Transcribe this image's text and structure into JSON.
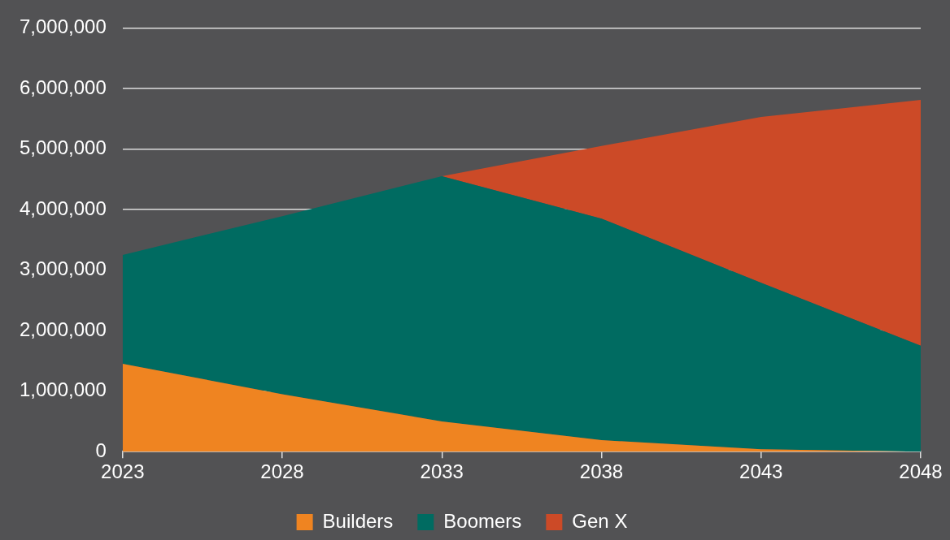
{
  "chart_data": {
    "type": "area",
    "stacked": true,
    "categories": [
      "2023",
      "2028",
      "2033",
      "2038",
      "2043",
      "2048"
    ],
    "series": [
      {
        "name": "Builders",
        "color": "#ef8421",
        "values": [
          1450000,
          950000,
          500000,
          190000,
          40000,
          0
        ]
      },
      {
        "name": "Boomers",
        "color": "#006b61",
        "values": [
          1800000,
          2940000,
          4050000,
          3660000,
          2750000,
          1750000
        ]
      },
      {
        "name": "Gen X",
        "color": "#cc4a27",
        "values": [
          null,
          null,
          0,
          1200000,
          2740000,
          4060000
        ]
      }
    ],
    "ylim": [
      0,
      7000000
    ],
    "yticks": [
      0,
      {
        "value": 1000000,
        "label": "1,000,000"
      },
      {
        "value": 2000000,
        "label": "2,000,000"
      },
      {
        "value": 3000000,
        "label": "3,000,000"
      },
      {
        "value": 4000000,
        "label": "4,000,000"
      },
      {
        "value": 5000000,
        "label": "5,000,000"
      },
      {
        "value": 6000000,
        "label": "6,000,000"
      },
      {
        "value": 7000000,
        "label": "7,000,000"
      }
    ],
    "grid": "y",
    "legend": "bottom"
  }
}
